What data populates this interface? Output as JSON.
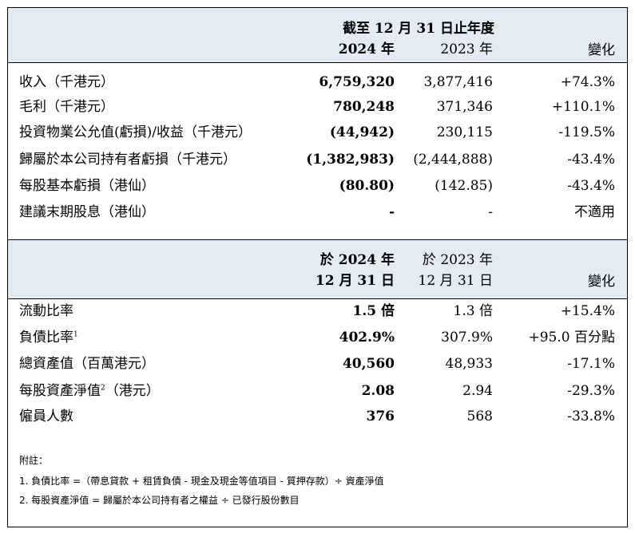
{
  "section1": {
    "header_span": "截至 12 月 31 日止年度",
    "col_current": "2024 年",
    "col_prior": "2023 年",
    "col_change": "變化",
    "rows": [
      {
        "label": "收入（千港元）",
        "current": "6,759,320",
        "prior": "3,877,416",
        "change": "+74.3%"
      },
      {
        "label": "毛利（千港元）",
        "current": "780,248",
        "prior": "371,346",
        "change": "+110.1%"
      },
      {
        "label": "投資物業公允值(虧損)/收益（千港元）",
        "current": "(44,942)",
        "prior": "230,115",
        "change": "-119.5%"
      },
      {
        "label": "歸屬於本公司持有者虧損（千港元）",
        "current": "(1,382,983)",
        "prior": "(2,444,888)",
        "change": "-43.4%"
      },
      {
        "label": "每股基本虧損（港仙）",
        "current": "(80.80)",
        "prior": "(142.85)",
        "change": "-43.4%"
      },
      {
        "label": "建議末期股息（港仙）",
        "current": "-",
        "prior": "-",
        "change": "不適用"
      }
    ]
  },
  "section2": {
    "col_current_line1": "於 2024 年",
    "col_current_line2": "12 月 31 日",
    "col_prior_line1": "於 2023 年",
    "col_prior_line2": "12 月 31 日",
    "col_change": "變化",
    "rows": [
      {
        "label": "流動比率",
        "note": "",
        "label_suffix": "",
        "current": "1.5 倍",
        "prior": "1.3 倍",
        "change": "+15.4%"
      },
      {
        "label": "負債比率",
        "note": "1",
        "label_suffix": "",
        "current": "402.9%",
        "prior": "307.9%",
        "change": "+95.0 百分點"
      },
      {
        "label": "總資產值（百萬港元）",
        "note": "",
        "label_suffix": "",
        "current": "40,560",
        "prior": "48,933",
        "change": "-17.1%"
      },
      {
        "label": "每股資產淨值",
        "note": "2",
        "label_suffix": "（港元）",
        "current": "2.08",
        "prior": "2.94",
        "change": "-29.3%"
      },
      {
        "label": "僱員人數",
        "note": "",
        "label_suffix": "",
        "current": "376",
        "prior": "568",
        "change": "-33.8%"
      }
    ]
  },
  "notes": {
    "title": "附註：",
    "items": [
      "1. 負債比率 =（帶息貸款 + 租賃負債 - 現金及現金等值項目 - 質押存款）÷ 資產淨值",
      "2. 每股資產淨值 = 歸屬於本公司持有者之權益 ÷ 已發行股份數目"
    ]
  },
  "colors": {
    "header_band": "#e4ebf4",
    "border": "#000000"
  }
}
